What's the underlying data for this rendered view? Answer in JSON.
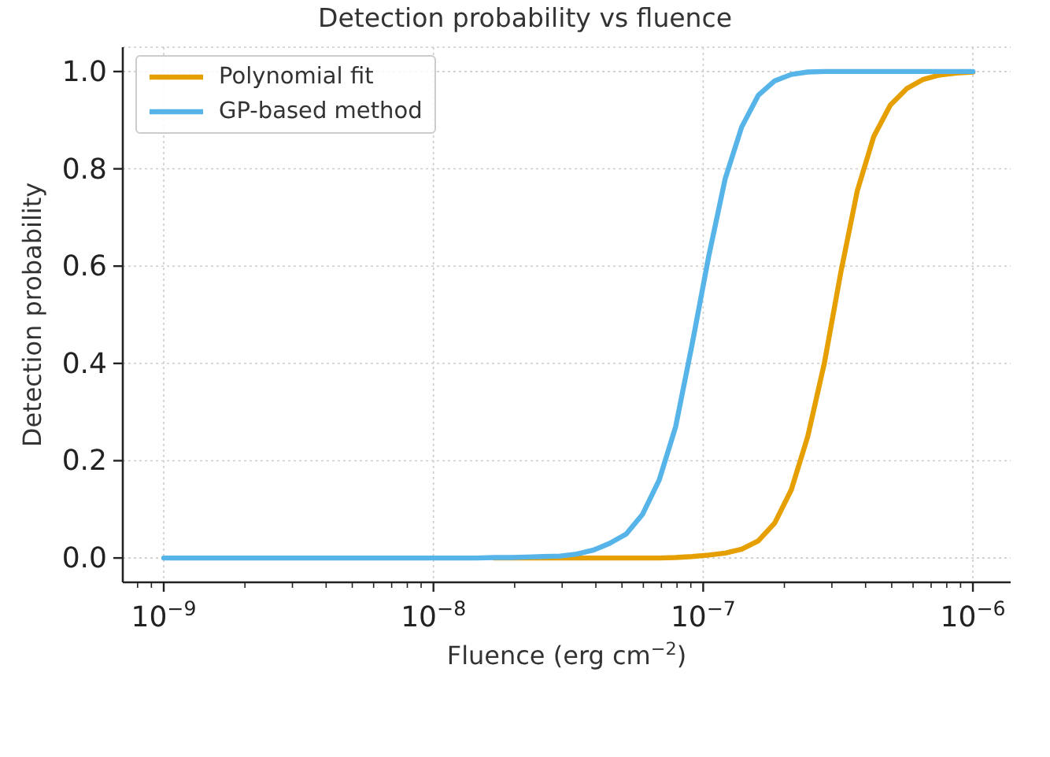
{
  "chart_data": {
    "type": "line",
    "title": "Detection probability vs fluence",
    "xlabel": "Fluence (erg cm$^{−2}$)",
    "ylabel": "Detection probability",
    "x": [
      1e-09,
      1.151e-09,
      1.326e-09,
      1.526e-09,
      1.758e-09,
      2.024e-09,
      2.33e-09,
      2.683e-09,
      3.089e-09,
      3.556e-09,
      4.095e-09,
      4.715e-09,
      5.429e-09,
      6.251e-09,
      7.197e-09,
      8.286e-09,
      9.541e-09,
      1.0985e-08,
      1.265e-08,
      1.456e-08,
      1.677e-08,
      1.931e-08,
      2.223e-08,
      2.56e-08,
      2.947e-08,
      3.393e-08,
      3.907e-08,
      4.498e-08,
      5.179e-08,
      5.963e-08,
      6.866e-08,
      7.906e-08,
      9.103e-08,
      1.048e-07,
      1.207e-07,
      1.389e-07,
      1.6e-07,
      1.842e-07,
      2.121e-07,
      2.442e-07,
      2.812e-07,
      3.237e-07,
      3.728e-07,
      4.292e-07,
      4.942e-07,
      5.69e-07,
      6.551e-07,
      7.543e-07,
      8.685e-07,
      1e-06
    ],
    "series": [
      {
        "name": "Polynomial fit",
        "color": "#e69f00",
        "values": [
          null,
          null,
          null,
          null,
          null,
          null,
          null,
          null,
          null,
          null,
          null,
          null,
          null,
          null,
          null,
          null,
          null,
          null,
          null,
          null,
          0,
          0,
          0,
          0,
          0,
          0,
          0,
          0,
          0,
          0,
          0,
          0.001,
          0.003,
          0.006,
          0.01,
          0.018,
          0.035,
          0.072,
          0.14,
          0.25,
          0.4,
          0.587,
          0.755,
          0.867,
          0.931,
          0.965,
          0.984,
          0.993,
          0.997,
          0.999
        ]
      },
      {
        "name": "GP-based method",
        "color": "#56b4e9",
        "values": [
          0,
          0,
          0,
          0,
          0,
          0,
          0,
          0,
          0,
          0,
          0,
          0,
          0,
          0,
          0,
          0,
          0,
          0,
          0,
          0,
          0.001,
          0.001,
          0.002,
          0.003,
          0.004,
          0.008,
          0.016,
          0.03,
          0.049,
          0.09,
          0.16,
          0.27,
          0.44,
          0.62,
          0.78,
          0.886,
          0.951,
          0.981,
          0.994,
          0.999,
          1,
          1,
          1,
          1,
          1,
          1,
          1,
          1,
          1,
          1
        ]
      }
    ],
    "log": "x",
    "xlim": [
      7.05e-10,
      1.38e-06
    ],
    "xticks": [
      {
        "value": 8e-10,
        "label": null
      },
      {
        "value": 9e-10,
        "label": null
      },
      {
        "value": 1e-09,
        "label": "10$^{−9}$"
      },
      {
        "value": 2e-09,
        "label": null
      },
      {
        "value": 3e-09,
        "label": null
      },
      {
        "value": 4e-09,
        "label": null
      },
      {
        "value": 5e-09,
        "label": null
      },
      {
        "value": 6e-09,
        "label": null
      },
      {
        "value": 7e-09,
        "label": null
      },
      {
        "value": 8e-09,
        "label": null
      },
      {
        "value": 9e-09,
        "label": null
      },
      {
        "value": 1e-08,
        "label": "10$^{−8}$"
      },
      {
        "value": 2e-08,
        "label": null
      },
      {
        "value": 3e-08,
        "label": null
      },
      {
        "value": 4e-08,
        "label": null
      },
      {
        "value": 5e-08,
        "label": null
      },
      {
        "value": 6e-08,
        "label": null
      },
      {
        "value": 7e-08,
        "label": null
      },
      {
        "value": 8e-08,
        "label": null
      },
      {
        "value": 9e-08,
        "label": null
      },
      {
        "value": 1e-07,
        "label": "10$^{−7}$"
      },
      {
        "value": 2e-07,
        "label": null
      },
      {
        "value": 3e-07,
        "label": null
      },
      {
        "value": 4e-07,
        "label": null
      },
      {
        "value": 5e-07,
        "label": null
      },
      {
        "value": 6e-07,
        "label": null
      },
      {
        "value": 7e-07,
        "label": null
      },
      {
        "value": 8e-07,
        "label": null
      },
      {
        "value": 9e-07,
        "label": null
      },
      {
        "value": 1e-06,
        "label": "10$^{−6}$"
      }
    ],
    "ylim": [
      -0.05,
      1.05
    ],
    "yticks": [
      {
        "value": 0,
        "label": "0.0"
      },
      {
        "value": 0.2,
        "label": "0.2"
      },
      {
        "value": 0.4,
        "label": "0.4"
      },
      {
        "value": 0.6,
        "label": "0.6"
      },
      {
        "value": 0.8,
        "label": "0.8"
      },
      {
        "value": 1,
        "label": "1.0"
      }
    ],
    "grid": true,
    "legend": "top left",
    "marker": "none",
    "line_style": "solid"
  }
}
